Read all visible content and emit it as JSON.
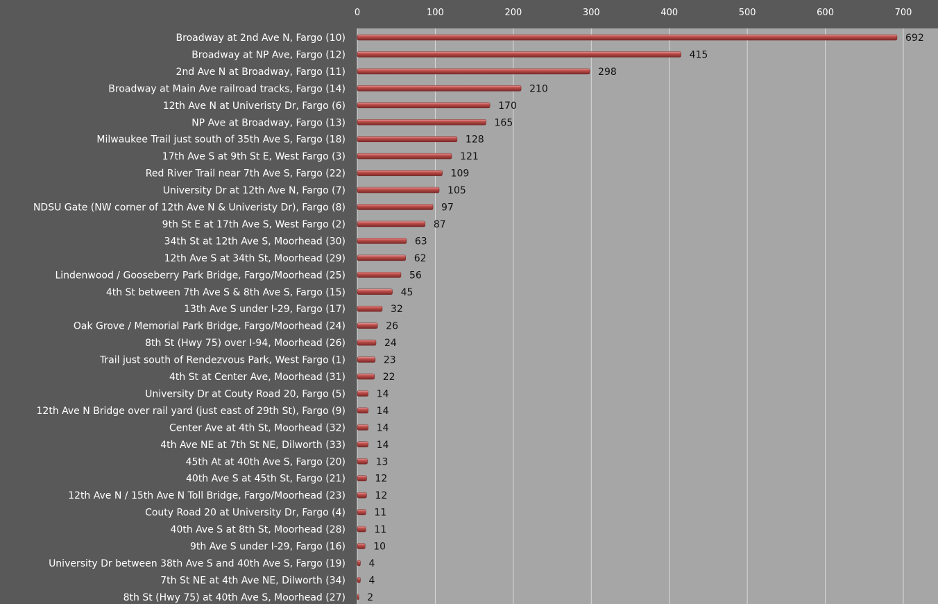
{
  "colors": {
    "page_background": "#595959",
    "plot_background": "#a6a6a6",
    "gridline": "#d9d9d9",
    "bar_fill": "#c0504d",
    "label_text": "#ffffff",
    "value_text": "#111111"
  },
  "chart_data": {
    "type": "bar",
    "orientation": "horizontal",
    "xlim": [
      0,
      700
    ],
    "x_ticks": [
      0,
      100,
      200,
      300,
      400,
      500,
      600,
      700
    ],
    "x_axis_position": "top",
    "grid": true,
    "legend": "none",
    "categories": [
      "Broadway at 2nd Ave N,  Fargo  (10)",
      "Broadway at NP Ave,  Fargo  (12)",
      "2nd Ave N at Broadway,  Fargo  (11)",
      "Broadway at Main Ave railroad tracks,  Fargo  (14)",
      "12th Ave N at Univeristy Dr,  Fargo  (6)",
      "NP Ave at Broadway,  Fargo  (13)",
      "Milwaukee Trail just south of 35th Ave S,  Fargo  (18)",
      "17th Ave S at 9th St E,  West Fargo  (3)",
      "Red River Trail near 7th Ave S,  Fargo  (22)",
      "University Dr at 12th Ave N,  Fargo  (7)",
      "NDSU Gate (NW corner of 12th Ave N & Univeristy Dr),  Fargo  (8)",
      "9th St E at 17th Ave S,  West Fargo  (2)",
      "34th St at 12th Ave S,  Moorhead  (30)",
      "12th Ave S at 34th St,  Moorhead  (29)",
      "Lindenwood / Gooseberry Park Bridge,  Fargo/Moorhead  (25)",
      "4th St between 7th Ave S & 8th Ave S,  Fargo  (15)",
      "13th Ave S under I-29,  Fargo  (17)",
      "Oak Grove / Memorial Park Bridge,  Fargo/Moorhead  (24)",
      "8th St (Hwy 75) over I-94,  Moorhead  (26)",
      "Trail just south of Rendezvous Park,  West Fargo  (1)",
      "4th St at Center Ave,  Moorhead  (31)",
      "University Dr at Couty Road 20,  Fargo  (5)",
      "12th Ave N Bridge over rail yard (just east of 29th St),  Fargo  (9)",
      "Center Ave at 4th St,  Moorhead  (32)",
      "4th Ave NE at 7th St NE,  Dilworth  (33)",
      "45th At at 40th Ave S,  Fargo  (20)",
      "40th Ave S at 45th St,  Fargo  (21)",
      "12th Ave N / 15th Ave N Toll Bridge,  Fargo/Moorhead  (23)",
      "Couty Road 20 at University Dr,  Fargo  (4)",
      "40th Ave S at 8th St,  Moorhead  (28)",
      "9th Ave S under I-29,  Fargo  (16)",
      "University Dr between 38th Ave S and 40th Ave S,  Fargo  (19)",
      "7th St NE at 4th Ave NE,  Dilworth  (34)",
      "8th St (Hwy 75) at 40th Ave S,  Moorhead  (27)"
    ],
    "values": [
      692,
      415,
      298,
      210,
      170,
      165,
      128,
      121,
      109,
      105,
      97,
      87,
      63,
      62,
      56,
      45,
      32,
      26,
      24,
      23,
      22,
      14,
      14,
      14,
      14,
      13,
      12,
      12,
      11,
      11,
      10,
      4,
      4,
      2
    ]
  }
}
